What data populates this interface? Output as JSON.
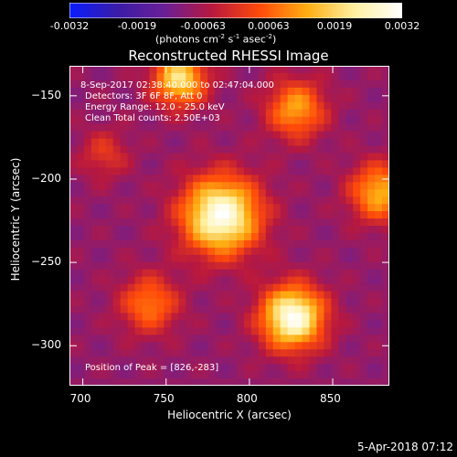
{
  "colorbar": {
    "ticks": [
      "-0.0032",
      "-0.0019",
      "-0.00063",
      "0.00063",
      "0.0019",
      "0.0032"
    ],
    "range": [
      -0.0032,
      0.0032
    ],
    "unit_main": "(photons cm",
    "unit_sup1": "-2",
    "unit_mid": " s",
    "unit_sup2": "-1",
    "unit_end": " asec",
    "unit_sup3": "-2",
    "unit_close": ")",
    "colors": [
      "#0a1cff",
      "#3a1ca8",
      "#6a1f96",
      "#b8183e",
      "#ff4a0a",
      "#ffae12",
      "#fff0a0",
      "#ffffff"
    ]
  },
  "title": "Reconstructed RHESSI Image",
  "annotations": {
    "time": "8-Sep-2017 02:38:40.000 to 02:47:04.000",
    "detectors": "Detectors: 3F 6F 8F, Att 0",
    "energy": "Energy Range: 12.0 - 25.0 keV",
    "clean": "Clean    Total counts: 2.50E+03",
    "peak": "Position of Peak = [826,-283]"
  },
  "footer": "5-Apr-2018 07:12",
  "chart_data": {
    "type": "heatmap",
    "title": "Reconstructed RHESSI Image",
    "xlabel": "Heliocentric X (arcsec)",
    "ylabel": "Heliocentric Y (arcsec)",
    "xlim": [
      692,
      884
    ],
    "ylim": [
      -324,
      -132
    ],
    "xticks": [
      700,
      750,
      800,
      850
    ],
    "yticks": [
      -150,
      -200,
      -250,
      -300
    ],
    "xtick_labels": [
      "700",
      "750",
      "800",
      "850"
    ],
    "ytick_labels": [
      "−150",
      "−200",
      "−250",
      "−300"
    ],
    "colorbar_range": [
      -0.0032,
      0.0032
    ],
    "sources": [
      {
        "x": 783,
        "y": -222,
        "amp": 1.0,
        "sigma": 16
      },
      {
        "x": 826,
        "y": -283,
        "amp": 1.0,
        "sigma": 13
      },
      {
        "x": 758,
        "y": -140,
        "amp": 0.75,
        "sigma": 11
      },
      {
        "x": 828,
        "y": -158,
        "amp": 0.55,
        "sigma": 12
      },
      {
        "x": 878,
        "y": -208,
        "amp": 0.6,
        "sigma": 12
      },
      {
        "x": 740,
        "y": -275,
        "amp": 0.45,
        "sigma": 12
      },
      {
        "x": 713,
        "y": -185,
        "amp": 0.25,
        "sigma": 10
      }
    ],
    "peak_position": [
      826,
      -283
    ]
  }
}
